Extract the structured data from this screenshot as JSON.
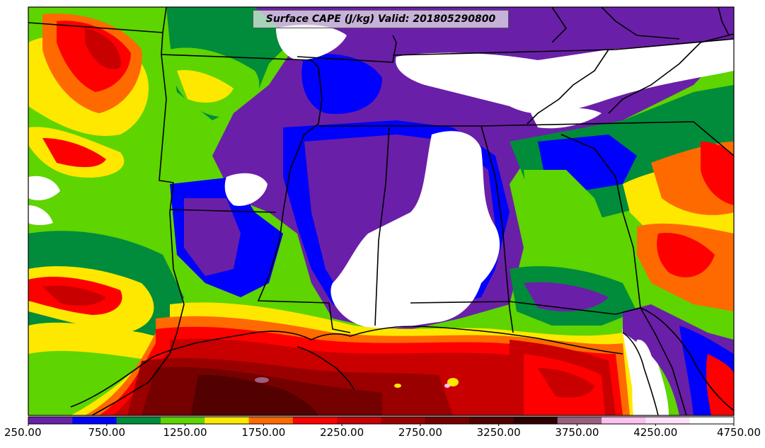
{
  "title": "Surface CAPE (J/kg) Valid: 201805290800",
  "colorbar": {
    "labels": [
      "250.00",
      "750.00",
      "1250.00",
      "1750.00",
      "2250.00",
      "2750.00",
      "3250.00",
      "3750.00",
      "4250.00",
      "4750.00"
    ],
    "bins": [
      {
        "color": "#6a1fa8"
      },
      {
        "color": "#0000ff"
      },
      {
        "color": "#008c3a"
      },
      {
        "color": "#5ed400"
      },
      {
        "color": "#ffe800"
      },
      {
        "color": "#ff6a00"
      },
      {
        "color": "#ff0000"
      },
      {
        "color": "#c80000"
      },
      {
        "color": "#9a0000"
      },
      {
        "color": "#740000"
      },
      {
        "color": "#520000"
      },
      {
        "color": "#2e0000"
      },
      {
        "color": "#9b5f7f"
      },
      {
        "color": "#ffbff0"
      },
      {
        "color": "#ffe0f8"
      },
      {
        "color": "#ffffff"
      }
    ]
  },
  "colors": {
    "below_min": "#ffffff",
    "state_lines": "#000000"
  }
}
